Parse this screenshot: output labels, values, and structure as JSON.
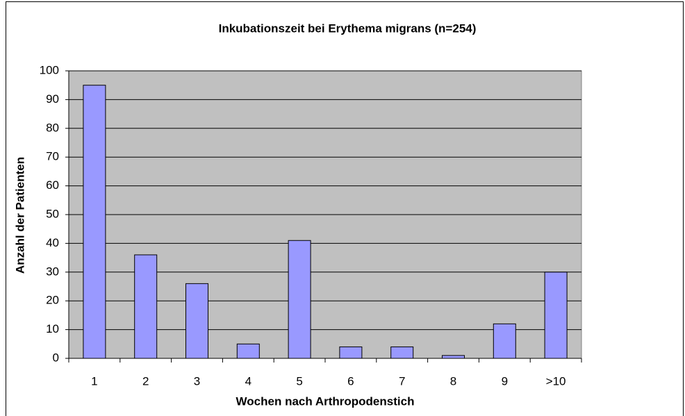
{
  "chart_data": {
    "type": "bar",
    "title": "Inkubationszeit bei Erythema migrans (n=254)",
    "x_label": "Wochen nach Arthropodenstich",
    "y_label": "Anzahl der Patienten",
    "categories": [
      "1",
      "2",
      "3",
      "4",
      "5",
      "6",
      "7",
      "8",
      "9",
      ">10"
    ],
    "values": [
      95,
      36,
      26,
      5,
      41,
      4,
      4,
      1,
      12,
      30
    ],
    "color": "#9999ff",
    "ylim": [
      0,
      100
    ],
    "yticks": [
      0,
      10,
      20,
      30,
      40,
      50,
      60,
      70,
      80,
      90,
      100
    ],
    "grid": true
  }
}
